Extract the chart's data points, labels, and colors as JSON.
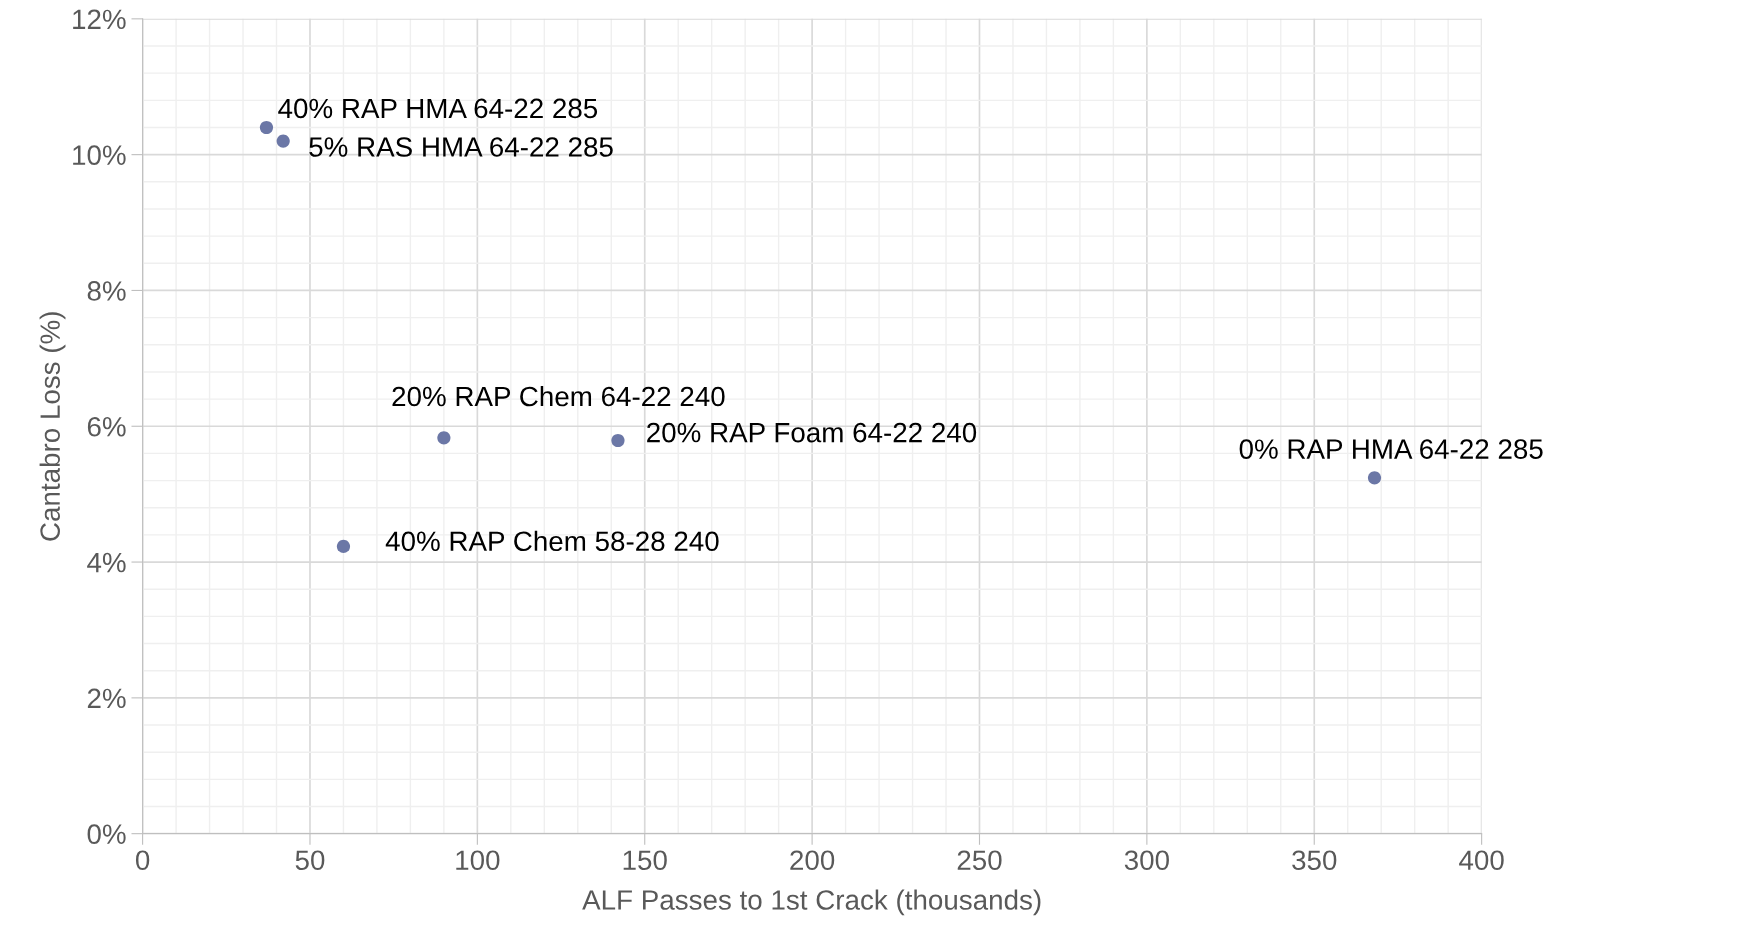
{
  "chart_data": {
    "type": "scatter",
    "xlabel": "ALF Passes to 1st Crack (thousands)",
    "ylabel": "Cantabro Loss (%)",
    "xlim": [
      0,
      400
    ],
    "xticks": [
      0,
      50,
      100,
      150,
      200,
      250,
      300,
      350,
      400
    ],
    "ylim": [
      0,
      12
    ],
    "yticks": [
      {
        "value": 0,
        "label": "0%"
      },
      {
        "value": 2,
        "label": "2%"
      },
      {
        "value": 4,
        "label": "4%"
      },
      {
        "value": 6,
        "label": "6%"
      },
      {
        "value": 8,
        "label": "8%"
      },
      {
        "value": 10,
        "label": "10%"
      },
      {
        "value": 12,
        "label": "12%"
      }
    ],
    "grid": true,
    "marker": "circle",
    "legend": false,
    "series": [
      {
        "name": "40% RAP HMA 64-22 285",
        "color": "#6b77a6",
        "x": [
          37
        ],
        "values": [
          10.4
        ]
      },
      {
        "name": "5% RAS HMA 64-22 285",
        "color": "#6b77a6",
        "x": [
          42
        ],
        "values": [
          10.2
        ]
      },
      {
        "name": "20% RAP Chem 64-22 240",
        "color": "#6b77a6",
        "x": [
          90
        ],
        "values": [
          5.83
        ]
      },
      {
        "name": "20% RAP Foam 64-22 240",
        "color": "#6b77a6",
        "x": [
          142
        ],
        "values": [
          5.79
        ]
      },
      {
        "name": "40% RAP Chem 58-28 240",
        "color": "#6b77a6",
        "x": [
          60
        ],
        "values": [
          4.23
        ]
      },
      {
        "name": "0% RAP HMA 64-22 285",
        "color": "#6b77a6",
        "x": [
          368
        ],
        "values": [
          5.24
        ]
      }
    ]
  }
}
